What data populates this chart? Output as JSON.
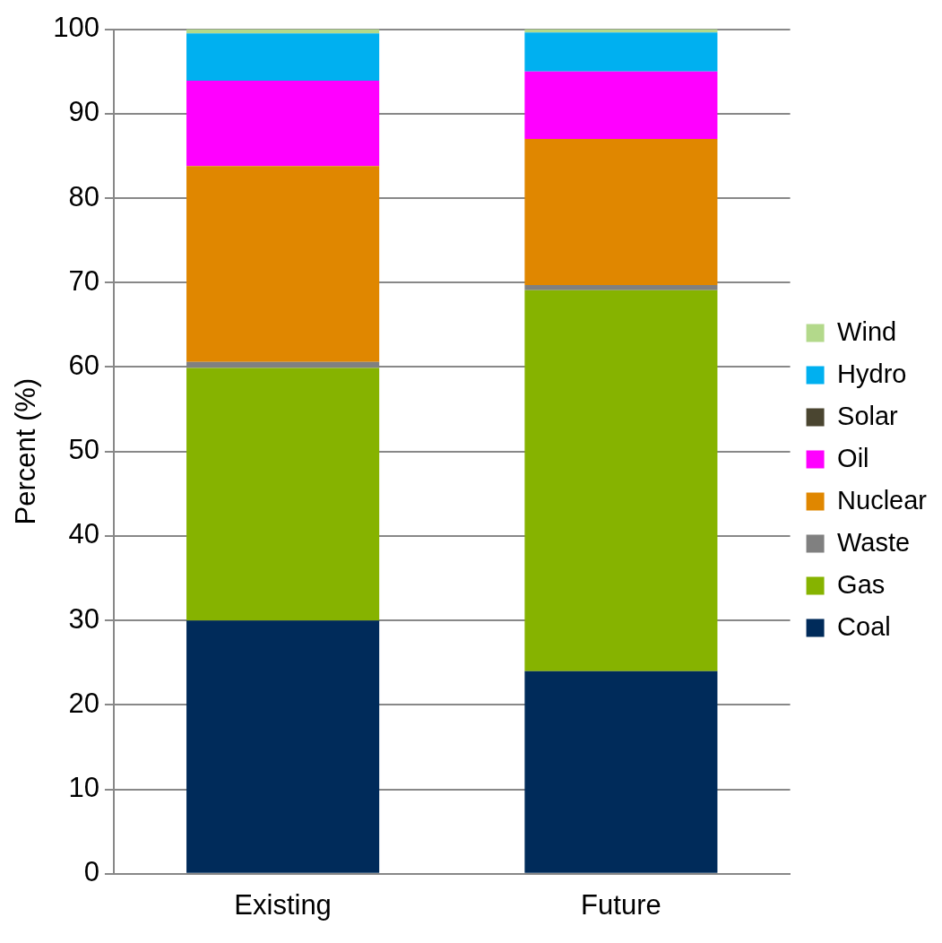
{
  "chart_data": {
    "type": "bar",
    "stacked": true,
    "ylabel": "Percent (%)",
    "categories": [
      "Existing",
      "Future"
    ],
    "series": [
      {
        "name": "Coal",
        "color": "#002b5a",
        "values": [
          30,
          24
        ]
      },
      {
        "name": "Gas",
        "color": "#86b300",
        "values": [
          29.9,
          45.1
        ]
      },
      {
        "name": "Waste",
        "color": "#808080",
        "values": [
          0.7,
          0.6
        ]
      },
      {
        "name": "Nuclear",
        "color": "#e08700",
        "values": [
          23.2,
          17.3
        ]
      },
      {
        "name": "Oil",
        "color": "#ff00ff",
        "values": [
          10.1,
          8
        ]
      },
      {
        "name": "Solar",
        "color": "#4a4530",
        "values": [
          0,
          0
        ]
      },
      {
        "name": "Hydro",
        "color": "#00b0f0",
        "values": [
          5.6,
          4.6
        ]
      },
      {
        "name": "Wind",
        "color": "#b3d98b",
        "values": [
          0.5,
          0.4
        ]
      }
    ],
    "ylim": [
      0,
      100
    ],
    "yticks": [
      0,
      10,
      20,
      30,
      40,
      50,
      60,
      70,
      80,
      90,
      100
    ],
    "grid": "y",
    "legend": "right"
  }
}
